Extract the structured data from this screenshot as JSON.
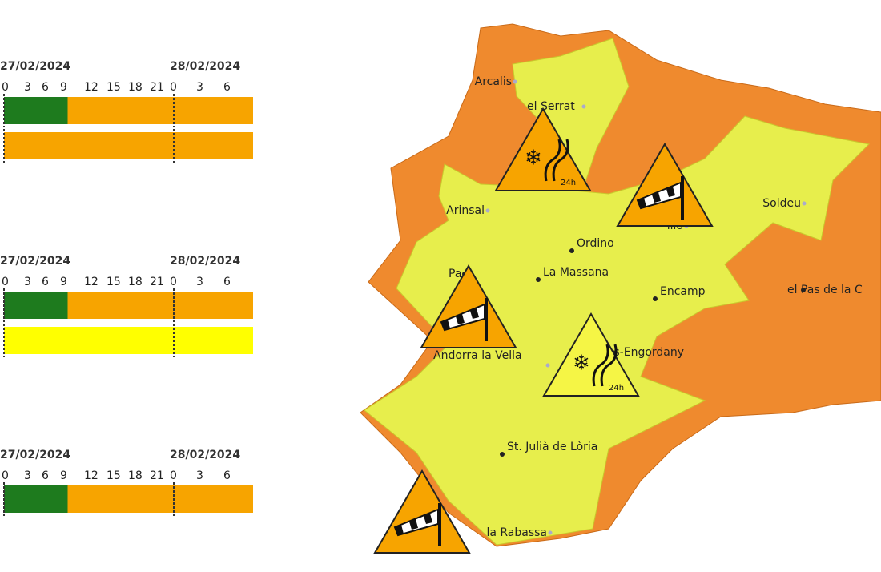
{
  "timelines": [
    {
      "dates": [
        "27/02/2024",
        "28/02/2024"
      ],
      "hours": [
        "0",
        "3",
        "6",
        "9",
        "12",
        "15",
        "18",
        "21",
        "0",
        "3",
        "6"
      ],
      "bars": [
        [
          {
            "from": 0,
            "color": "#1e7b1e"
          },
          {
            "from": 9,
            "color": "#f7a400"
          }
        ],
        [
          {
            "from": 0,
            "color": "#f7a400"
          }
        ]
      ]
    },
    {
      "dates": [
        "27/02/2024",
        "28/02/2024"
      ],
      "hours": [
        "0",
        "3",
        "6",
        "9",
        "12",
        "15",
        "18",
        "21",
        "0",
        "3",
        "6"
      ],
      "bars": [
        [
          {
            "from": 0,
            "color": "#1e7b1e"
          },
          {
            "from": 9,
            "color": "#f7a400"
          }
        ],
        [
          {
            "from": 0,
            "color": "#ffff00"
          }
        ]
      ]
    },
    {
      "dates": [
        "27/02/2024",
        "28/02/2024"
      ],
      "hours": [
        "0",
        "3",
        "6",
        "9",
        "12",
        "15",
        "18",
        "21",
        "0",
        "3",
        "6"
      ],
      "bars": [
        [
          {
            "from": 0,
            "color": "#1e7b1e"
          },
          {
            "from": 9,
            "color": "#f7a400"
          }
        ]
      ]
    }
  ],
  "places": [
    "Arcalis",
    "el Serrat",
    "Arinsal",
    "illo",
    "Soldeu",
    "Ordino",
    "La Massana",
    "Pa",
    "Encamp",
    "el Pas de la C",
    "Andorra la Vella",
    "ldes-Engordany",
    "St. Julià de Lòria",
    "la Rabassa"
  ],
  "warnings": [
    {
      "kind": "snow",
      "color": "#f7a400",
      "label": "24h"
    },
    {
      "kind": "wind",
      "color": "#f7a400"
    },
    {
      "kind": "wind",
      "color": "#f7a400"
    },
    {
      "kind": "snow",
      "color": "#f5f545",
      "label": "24h"
    },
    {
      "kind": "wind",
      "color": "#f7a400"
    }
  ]
}
